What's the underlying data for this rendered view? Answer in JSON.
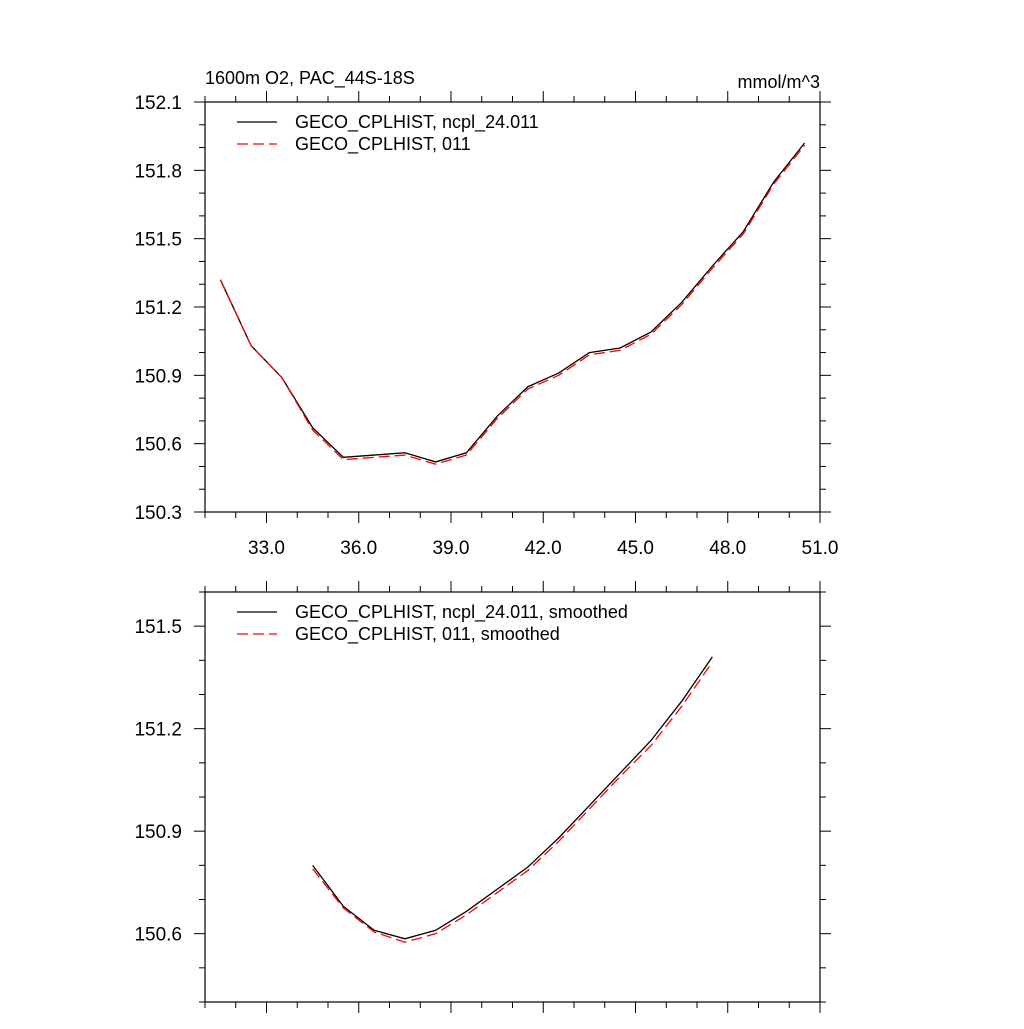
{
  "chart_data": [
    {
      "type": "line",
      "title": "1600m O2, PAC_44S-18S",
      "units": "mmol/m^3",
      "xlim": [
        31.0,
        51.0
      ],
      "ylim": [
        150.3,
        152.1
      ],
      "xticks": [
        33.0,
        36.0,
        39.0,
        42.0,
        45.0,
        48.0,
        51.0
      ],
      "xtick_labels": [
        "33.0",
        "36.0",
        "39.0",
        "42.0",
        "45.0",
        "48.0",
        "51.0"
      ],
      "yticks": [
        150.3,
        150.6,
        150.9,
        151.2,
        151.5,
        151.8,
        152.1
      ],
      "ytick_labels": [
        "150.3",
        "150.6",
        "150.9",
        "151.2",
        "151.5",
        "151.8",
        "152.1"
      ],
      "legend_position": "top-left",
      "x": [
        31.5,
        32.5,
        33.5,
        34.5,
        35.5,
        36.5,
        37.5,
        38.5,
        39.5,
        40.5,
        41.5,
        42.5,
        43.5,
        44.5,
        45.5,
        46.5,
        47.5,
        48.5,
        49.5,
        50.5
      ],
      "series": [
        {
          "name": "GECO_CPLHIST, ncpl_24.011",
          "color": "#000000",
          "dash": "solid",
          "values": [
            151.32,
            151.03,
            150.89,
            150.67,
            150.54,
            150.55,
            150.56,
            150.52,
            150.56,
            150.72,
            150.85,
            150.91,
            151.0,
            151.02,
            151.09,
            151.22,
            151.38,
            151.53,
            151.75,
            151.92
          ]
        },
        {
          "name": "GECO_CPLHIST, 011",
          "color": "#ff0000",
          "dash": "dashed",
          "values": [
            151.32,
            151.03,
            150.89,
            150.66,
            150.53,
            150.54,
            150.55,
            150.51,
            150.55,
            150.71,
            150.84,
            150.9,
            150.99,
            151.01,
            151.08,
            151.21,
            151.37,
            151.52,
            151.74,
            151.91
          ]
        }
      ]
    },
    {
      "type": "line",
      "xlim": [
        31.0,
        51.0
      ],
      "ylim": [
        150.4,
        151.6
      ],
      "xticks": [
        33.0,
        36.0,
        39.0,
        42.0,
        45.0,
        48.0,
        51.0
      ],
      "yticks": [
        150.6,
        150.9,
        151.2,
        151.5
      ],
      "ytick_labels": [
        "150.6",
        "150.9",
        "151.2",
        "151.5"
      ],
      "legend_position": "top-left",
      "x": [
        34.5,
        35.5,
        36.5,
        37.5,
        38.5,
        39.5,
        40.5,
        41.5,
        42.5,
        43.5,
        44.5,
        45.5,
        46.5,
        47.5
      ],
      "series": [
        {
          "name": "GECO_CPLHIST, ncpl_24.011, smoothed",
          "color": "#000000",
          "dash": "solid",
          "values": [
            150.8,
            150.68,
            150.61,
            150.585,
            150.61,
            150.665,
            150.73,
            150.795,
            150.88,
            150.975,
            151.07,
            151.165,
            151.28,
            151.41
          ]
        },
        {
          "name": "GECO_CPLHIST, 011, smoothed",
          "color": "#ff0000",
          "dash": "dashed",
          "values": [
            150.79,
            150.675,
            150.605,
            150.575,
            150.6,
            150.655,
            150.72,
            150.785,
            150.87,
            150.965,
            151.06,
            151.15,
            151.265,
            151.395
          ]
        }
      ]
    }
  ]
}
